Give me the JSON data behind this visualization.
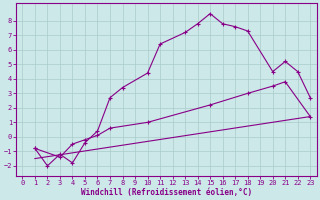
{
  "xlabel": "Windchill (Refroidissement éolien,°C)",
  "bg_color": "#cce8e8",
  "line_color": "#880088",
  "grid_color": "#aacccc",
  "xlim": [
    -0.5,
    23.5
  ],
  "ylim": [
    -2.7,
    9.2
  ],
  "xticks": [
    0,
    1,
    2,
    3,
    4,
    5,
    6,
    7,
    8,
    9,
    10,
    11,
    12,
    13,
    14,
    15,
    16,
    17,
    18,
    19,
    20,
    21,
    22,
    23
  ],
  "yticks": [
    -2,
    -1,
    0,
    1,
    2,
    3,
    4,
    5,
    6,
    7,
    8
  ],
  "line1_x": [
    1,
    2,
    3,
    4,
    5,
    6,
    7,
    8,
    10,
    11,
    13,
    14,
    15,
    16,
    17,
    18,
    20,
    21,
    22,
    23
  ],
  "line1_y": [
    -0.8,
    -2.0,
    -1.2,
    -1.8,
    -0.4,
    0.4,
    2.7,
    3.4,
    4.4,
    6.4,
    7.2,
    7.8,
    8.5,
    7.8,
    7.6,
    7.3,
    4.5,
    5.2,
    4.5,
    2.7
  ],
  "line2_x": [
    1,
    3,
    4,
    5,
    6,
    7,
    10,
    15,
    18,
    20,
    21,
    23
  ],
  "line2_y": [
    -0.8,
    -1.4,
    -0.5,
    -0.2,
    0.1,
    0.6,
    1.0,
    2.2,
    3.0,
    3.5,
    3.8,
    1.4
  ],
  "line3_x": [
    1,
    23
  ],
  "line3_y": [
    -1.5,
    1.4
  ]
}
